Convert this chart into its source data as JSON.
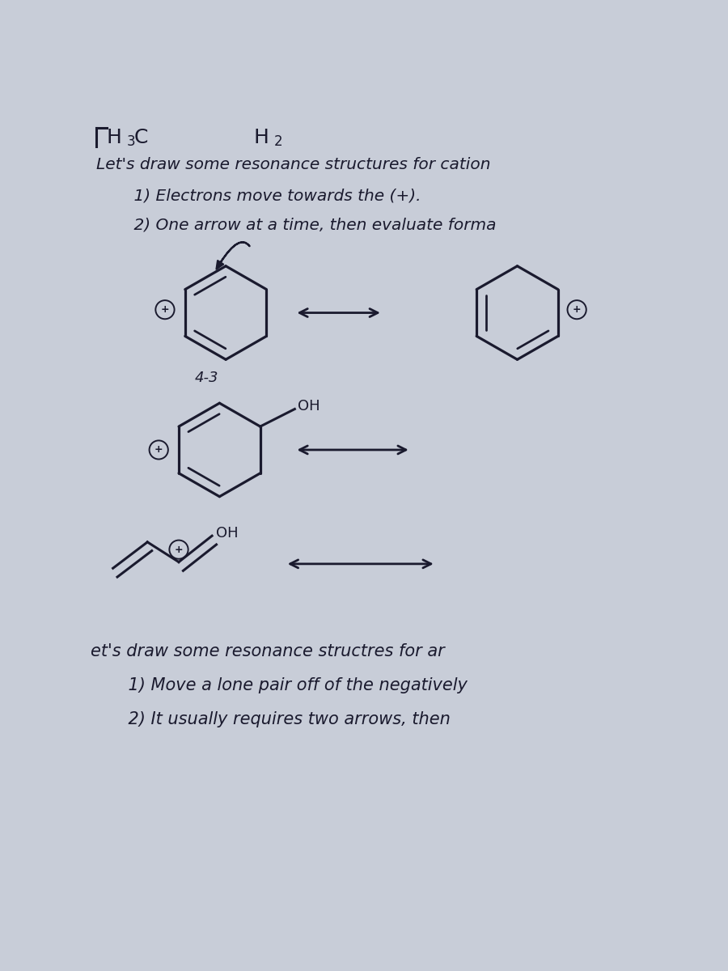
{
  "bg_color": "#c8cdd8",
  "text_color": "#1a1a2e",
  "line1": "Let's draw some resonance structures for cation",
  "line2": "    1) Electrons move towards the (+).",
  "line3": "    2) One arrow at a time, then evaluate forma",
  "label_43": "4-3",
  "bottom_line1": "et's draw some resonance structres for ar",
  "bottom_line2": "    1) Move a lone pair off of the negatively",
  "bottom_line3": "    2) It usually requires two arrows, then"
}
